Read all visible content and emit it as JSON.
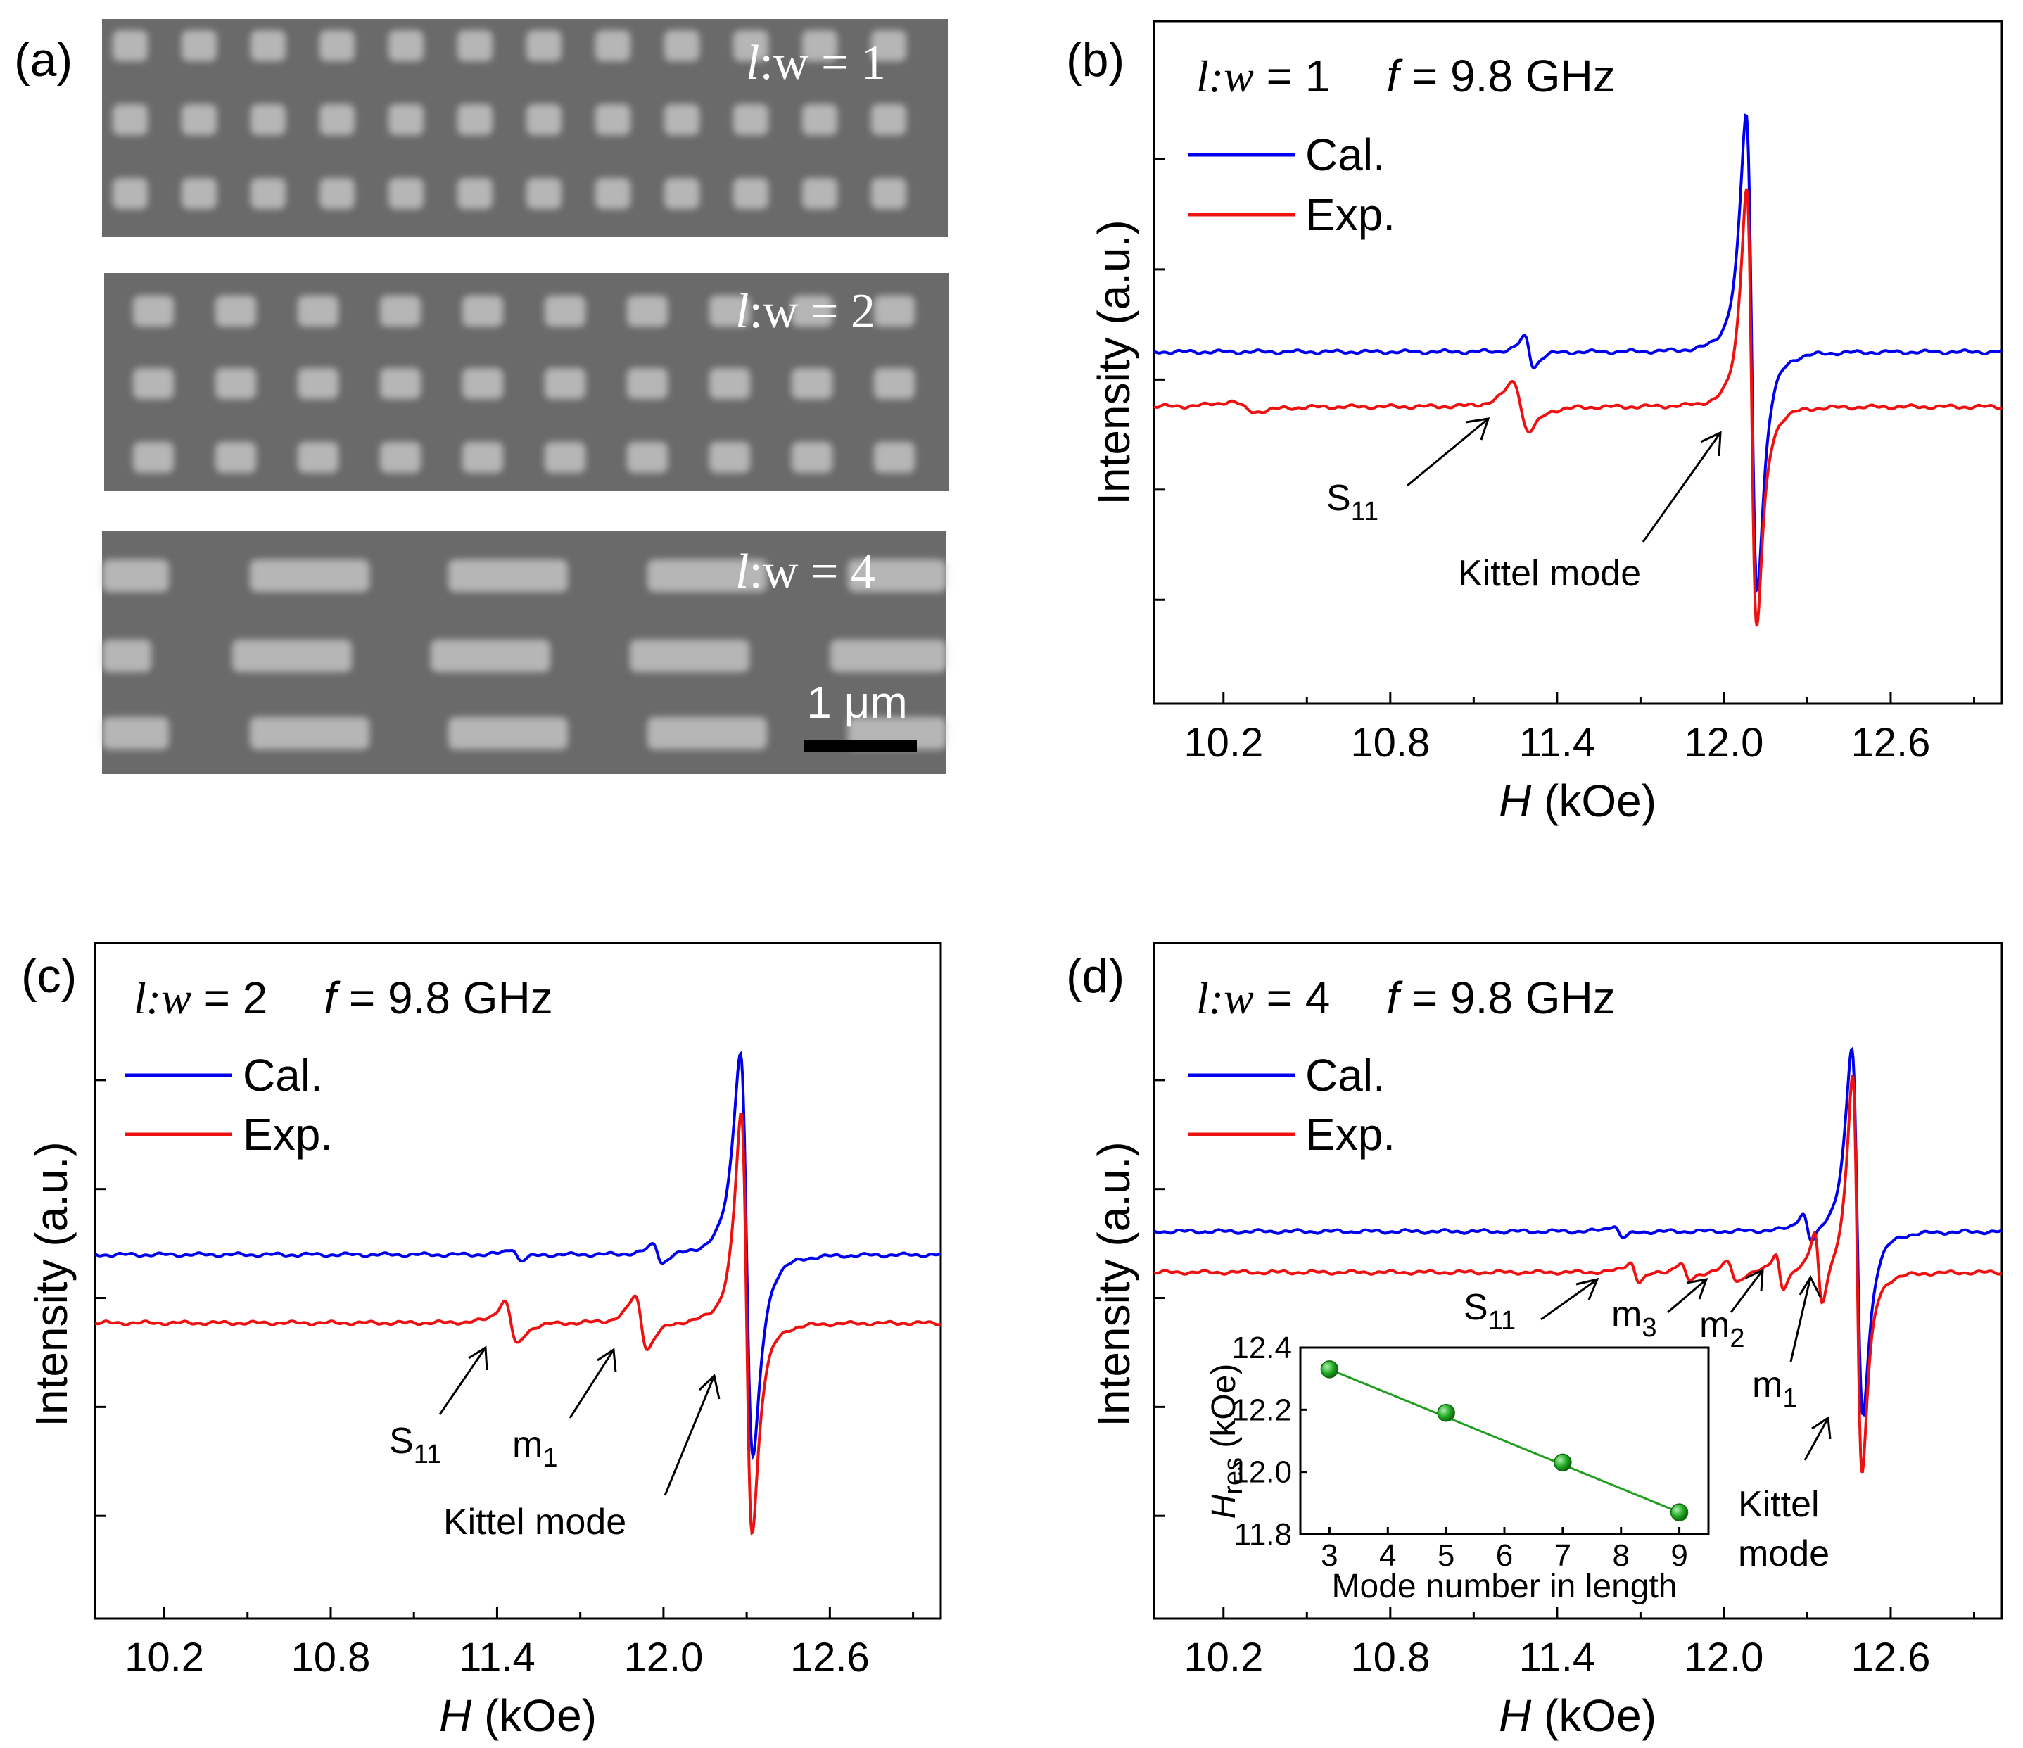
{
  "panel_labels": [
    "(a)",
    "(b)",
    "(c)",
    "(d)"
  ],
  "sem": {
    "images": [
      {
        "label_l": "l",
        "label_rest": ":w = 1",
        "pattern": "squares"
      },
      {
        "label_l": "l",
        "label_rest": ":w = 2",
        "pattern": "rects-2"
      },
      {
        "label_l": "l",
        "label_rest": ":w = 4",
        "pattern": "rects-4"
      }
    ],
    "scale_bar": "1 μm"
  },
  "colors": {
    "cal": "#0000ee",
    "exp": "#ee1111",
    "inset": "#1f9e1f",
    "inset_marker": "#22aa22"
  },
  "chart_data": [
    {
      "type": "line",
      "id": "b",
      "panel": "(b)",
      "note_l": "l:w",
      "note_lw_value": " = 1",
      "note_f": "f",
      "note_f_value": " = 9.8 GHz",
      "xlabel_var": "H",
      "xlabel_unit": " (kOe)",
      "ylabel": "Intensity (a.u.)",
      "xlim": [
        9.95,
        13.0
      ],
      "ylim": [
        -1.0,
        1.0
      ],
      "xticks": [
        "10.2",
        "10.8",
        "11.4",
        "12.0",
        "12.6"
      ],
      "legend": [
        "Cal.",
        "Exp."
      ],
      "series": [
        {
          "name": "Cal.",
          "baseline": 0.0,
          "peaks": [
            {
              "x0": 11.3,
              "w": 0.03,
              "a": 0.06
            },
            {
              "x0": 12.1,
              "w": 0.035,
              "a": 0.95
            }
          ]
        },
        {
          "name": "Exp.",
          "baseline": -0.16,
          "peaks": [
            {
              "x0": 10.27,
              "w": 0.08,
              "a": 0.02
            },
            {
              "x0": 11.27,
              "w": 0.05,
              "a": 0.1
            },
            {
              "x0": 12.1,
              "w": 0.032,
              "a": 0.88
            }
          ]
        }
      ],
      "annotations": [
        {
          "text": "S",
          "sub": "11"
        },
        {
          "text": "Kittel mode",
          "sub": ""
        }
      ]
    },
    {
      "type": "line",
      "id": "c",
      "panel": "(c)",
      "note_l": "l:w",
      "note_lw_value": " = 2",
      "note_f": "f",
      "note_f_value": " = 9.8 GHz",
      "xlabel_var": "H",
      "xlabel_unit": " (kOe)",
      "ylabel": "Intensity (a.u.)",
      "xlim": [
        9.95,
        13.0
      ],
      "ylim": [
        -1.0,
        1.0
      ],
      "xticks": [
        "10.2",
        "10.8",
        "11.4",
        "12.0",
        "12.6"
      ],
      "legend": [
        "Cal.",
        "Exp."
      ],
      "series": [
        {
          "name": "Cal.",
          "baseline": 0.02,
          "peaks": [
            {
              "x0": 11.47,
              "w": 0.03,
              "a": 0.025
            },
            {
              "x0": 11.98,
              "w": 0.03,
              "a": 0.04
            },
            {
              "x0": 12.3,
              "w": 0.04,
              "a": 0.85
            }
          ]
        },
        {
          "name": "Exp.",
          "baseline": -0.2,
          "peaks": [
            {
              "x0": 11.45,
              "w": 0.04,
              "a": 0.09
            },
            {
              "x0": 11.92,
              "w": 0.04,
              "a": 0.11
            },
            {
              "x0": 12.3,
              "w": 0.035,
              "a": 0.88
            }
          ]
        }
      ],
      "annotations": [
        {
          "text": "S",
          "sub": "11"
        },
        {
          "text": "m",
          "sub": "1"
        },
        {
          "text": "Kittel mode",
          "sub": ""
        }
      ]
    },
    {
      "type": "line",
      "id": "d",
      "panel": "(d)",
      "note_l": "l:w",
      "note_lw_value": " = 4",
      "note_f": "f",
      "note_f_value": " = 9.8 GHz",
      "xlabel_var": "H",
      "xlabel_unit": " (kOe)",
      "ylabel": "Intensity (a.u.)",
      "xlim": [
        9.95,
        13.0
      ],
      "ylim": [
        -1.0,
        1.0
      ],
      "xticks": [
        "10.2",
        "10.8",
        "11.4",
        "12.0",
        "12.6"
      ],
      "legend": [
        "Cal.",
        "Exp."
      ],
      "series": [
        {
          "name": "Cal.",
          "baseline": 0.06,
          "peaks": [
            {
              "x0": 11.62,
              "w": 0.03,
              "a": 0.025
            },
            {
              "x0": 12.3,
              "w": 0.03,
              "a": 0.06
            },
            {
              "x0": 12.48,
              "w": 0.035,
              "a": 0.75
            }
          ]
        },
        {
          "name": "Exp.",
          "baseline": -0.05,
          "peaks": [
            {
              "x0": 11.68,
              "w": 0.03,
              "a": 0.04
            },
            {
              "x0": 11.86,
              "w": 0.03,
              "a": 0.035
            },
            {
              "x0": 12.03,
              "w": 0.03,
              "a": 0.04
            },
            {
              "x0": 12.2,
              "w": 0.025,
              "a": 0.07
            },
            {
              "x0": 12.34,
              "w": 0.025,
              "a": 0.15
            },
            {
              "x0": 12.48,
              "w": 0.03,
              "a": 0.82
            }
          ]
        }
      ],
      "annotations": [
        {
          "text": "S",
          "sub": "11"
        },
        {
          "text": "m",
          "sub": "3"
        },
        {
          "text": "m",
          "sub": "2"
        },
        {
          "text": "m",
          "sub": "1"
        },
        {
          "text": "Kittel",
          "sub": ""
        },
        {
          "text": "mode",
          "sub": ""
        }
      ],
      "inset": {
        "type": "scatter",
        "x": [
          3,
          5,
          7,
          9
        ],
        "y": [
          12.33,
          12.19,
          12.03,
          11.87
        ],
        "xlabel": "Mode number in length",
        "ylabel_var": "H",
        "ylabel_sub": "res",
        "ylabel_unit": " (kOe)",
        "xlim": [
          2.5,
          9.5
        ],
        "ylim": [
          11.8,
          12.4
        ],
        "xticks": [
          "3",
          "4",
          "5",
          "6",
          "7",
          "8",
          "9"
        ],
        "yticks": [
          "11.8",
          "12.0",
          "12.2",
          "12.4"
        ],
        "fit_line": true
      }
    }
  ]
}
